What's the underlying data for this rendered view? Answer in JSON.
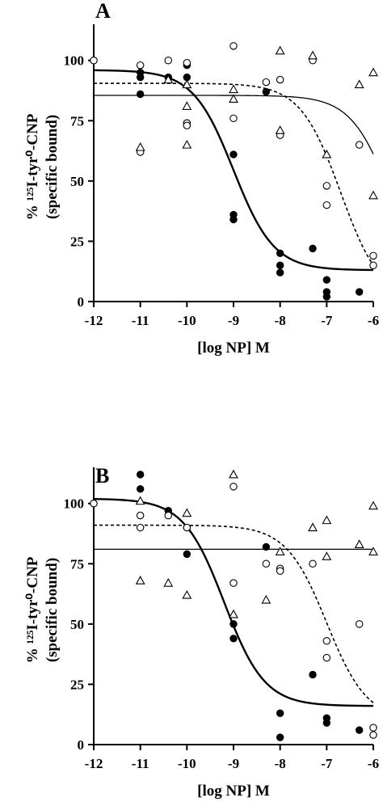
{
  "chart_data": [
    {
      "panel": "A",
      "type": "scatter",
      "xlabel": "[log NP] M",
      "ylabel": [
        "% ¹²⁵I-tyr⁰-CNP",
        "(specific bound)"
      ],
      "xlim": [
        -12,
        -6
      ],
      "ylim": [
        0,
        115
      ],
      "xticks": [
        -12,
        -11,
        -10,
        -9,
        -8,
        -7,
        -6
      ],
      "yticks": [
        0,
        25,
        50,
        75,
        100
      ],
      "grid": false,
      "series": [
        {
          "marker": "filled-circle",
          "line": "solid-thick",
          "points": [
            [
              -12,
              100
            ],
            [
              -11,
              95
            ],
            [
              -11,
              93
            ],
            [
              -11,
              86
            ],
            [
              -10.4,
              93
            ],
            [
              -10,
              98
            ],
            [
              -10,
              93
            ],
            [
              -10,
              74
            ],
            [
              -9,
              61
            ],
            [
              -9,
              36
            ],
            [
              -9,
              34
            ],
            [
              -8.3,
              87
            ],
            [
              -8,
              20
            ],
            [
              -8,
              15
            ],
            [
              -8,
              12
            ],
            [
              -7.3,
              22
            ],
            [
              -7,
              9
            ],
            [
              -7,
              4
            ],
            [
              -7,
              2
            ],
            [
              -6.3,
              4
            ]
          ],
          "curve": {
            "top": 96,
            "bottom": 13,
            "logEC50": -9.0,
            "hill": 1.0
          }
        },
        {
          "marker": "open-circle",
          "line": "dashed",
          "points": [
            [
              -12,
              100
            ],
            [
              -11,
              98
            ],
            [
              -11,
              62
            ],
            [
              -10.4,
              100
            ],
            [
              -10,
              99
            ],
            [
              -10,
              74
            ],
            [
              -10,
              73
            ],
            [
              -9,
              106
            ],
            [
              -9,
              76
            ],
            [
              -8.3,
              91
            ],
            [
              -8,
              92
            ],
            [
              -8,
              69
            ],
            [
              -7.3,
              100
            ],
            [
              -7,
              48
            ],
            [
              -7,
              40
            ],
            [
              -6.3,
              65
            ],
            [
              -6,
              19
            ],
            [
              -6,
              15
            ]
          ],
          "curve": {
            "top": 90.5,
            "bottom": 0,
            "logEC50": -6.7,
            "hill": 1.0
          }
        },
        {
          "marker": "open-triangle",
          "line": "solid-thin",
          "points": [
            [
              -11,
              64
            ],
            [
              -10.4,
              92
            ],
            [
              -10,
              90
            ],
            [
              -10,
              81
            ],
            [
              -10,
              65
            ],
            [
              -9,
              88
            ],
            [
              -9,
              84
            ],
            [
              -8,
              104
            ],
            [
              -8,
              71
            ],
            [
              -7.3,
              102
            ],
            [
              -7,
              61
            ],
            [
              -6.3,
              90
            ],
            [
              -6,
              95
            ],
            [
              -6,
              44
            ]
          ],
          "curve": {
            "top": 85.5,
            "bottom": 0,
            "logEC50": -5.6,
            "hill": 1.0
          }
        }
      ]
    },
    {
      "panel": "B",
      "type": "scatter",
      "xlabel": "[log NP] M",
      "ylabel": [
        "% ¹²⁵I-tyr⁰-CNP",
        "(specific bound)"
      ],
      "xlim": [
        -12,
        -6
      ],
      "ylim": [
        0,
        115
      ],
      "xticks": [
        -12,
        -11,
        -10,
        -9,
        -8,
        -7,
        -6
      ],
      "yticks": [
        0,
        25,
        50,
        75,
        100
      ],
      "grid": false,
      "series": [
        {
          "marker": "filled-circle",
          "line": "solid-thick",
          "points": [
            [
              -12,
              100
            ],
            [
              -11,
              112
            ],
            [
              -11,
              106
            ],
            [
              -10.4,
              97
            ],
            [
              -10,
              90
            ],
            [
              -10,
              79
            ],
            [
              -9,
              50
            ],
            [
              -9,
              44
            ],
            [
              -8.3,
              82
            ],
            [
              -8,
              13
            ],
            [
              -8,
              3
            ],
            [
              -7.3,
              29
            ],
            [
              -7,
              11
            ],
            [
              -7,
              9
            ],
            [
              -6.3,
              6
            ]
          ],
          "curve": {
            "top": 102,
            "bottom": 16,
            "logEC50": -9.2,
            "hill": 1.0
          }
        },
        {
          "marker": "open-circle",
          "line": "dashed",
          "points": [
            [
              -12,
              100
            ],
            [
              -11,
              95
            ],
            [
              -11,
              90
            ],
            [
              -10.4,
              95
            ],
            [
              -10,
              90
            ],
            [
              -9,
              107
            ],
            [
              -9,
              67
            ],
            [
              -8.3,
              75
            ],
            [
              -8,
              73
            ],
            [
              -8,
              72
            ],
            [
              -7.3,
              75
            ],
            [
              -7,
              43
            ],
            [
              -7,
              36
            ],
            [
              -6.3,
              50
            ],
            [
              -6,
              7
            ],
            [
              -6,
              4
            ]
          ],
          "curve": {
            "top": 91,
            "bottom": 10,
            "logEC50": -7.0,
            "hill": 1.0
          }
        },
        {
          "marker": "open-triangle",
          "line": "solid-thin",
          "points": [
            [
              -11,
              101
            ],
            [
              -11,
              68
            ],
            [
              -10.4,
              67
            ],
            [
              -10,
              96
            ],
            [
              -10,
              62
            ],
            [
              -9,
              112
            ],
            [
              -9,
              54
            ],
            [
              -8.3,
              60
            ],
            [
              -8,
              80
            ],
            [
              -7.3,
              90
            ],
            [
              -7,
              93
            ],
            [
              -7,
              78
            ],
            [
              -6.3,
              83
            ],
            [
              -6,
              99
            ],
            [
              -6,
              80
            ]
          ],
          "curve": {
            "top": 81,
            "bottom": 81,
            "logEC50": -11.0,
            "hill": 1.0
          }
        }
      ]
    }
  ]
}
